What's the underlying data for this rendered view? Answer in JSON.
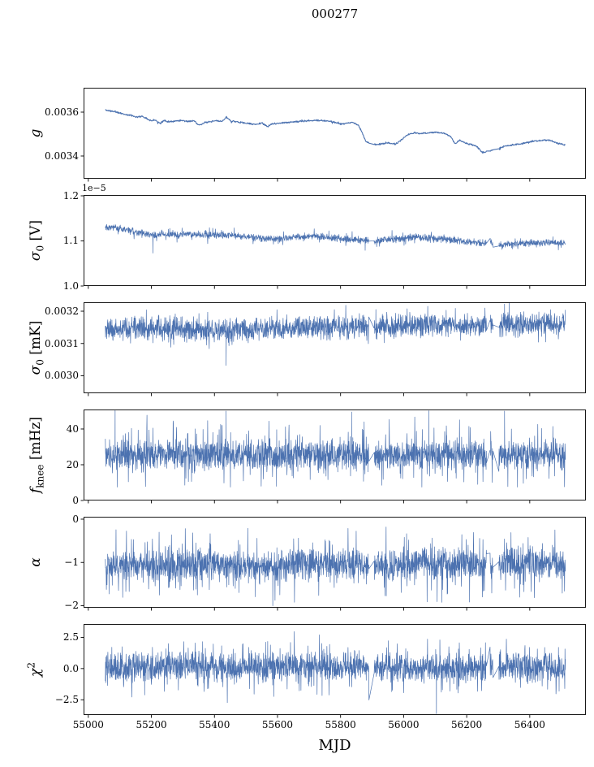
{
  "chart_data": {
    "type": "line",
    "title": "000277",
    "xlabel": "MJD",
    "line_color": "#4c72b0",
    "axis_color": "#000000",
    "background": "#ffffff",
    "grid": false,
    "legend": "none",
    "x": {
      "lim": [
        54985,
        56578
      ],
      "ticks": [
        55000,
        55200,
        55400,
        55600,
        55800,
        56000,
        56200,
        56400
      ],
      "tick_labels": [
        "55000",
        "55200",
        "55400",
        "55600",
        "55800",
        "56000",
        "56200",
        "56400"
      ],
      "data_range": [
        55054,
        56513
      ]
    },
    "gaps": [
      [
        55890,
        55906
      ],
      [
        56263,
        56274
      ],
      [
        56284,
        56302
      ]
    ],
    "panels": [
      {
        "id": "g",
        "ylabel_text": "g",
        "ylabel_parts": {
          "main": "g",
          "sub": "",
          "sup": "",
          "suffix": ""
        },
        "offset_text": "",
        "ylim": [
          0.0032963,
          0.0037111
        ],
        "yticks": [
          0.0034,
          0.0036
        ],
        "ytick_labels": [
          "0.0034",
          "0.0036"
        ],
        "series": {
          "kind": "trend_plus_noise",
          "seed": 11,
          "n_points": 1300,
          "noise_base": 4.2e-06,
          "spike_prob": 0.02,
          "spike_amp": 8e-06,
          "clip": null,
          "anomalies": [],
          "trend_points": [
            [
              55054,
              0.00361
            ],
            [
              55075,
              0.003604
            ],
            [
              55095,
              0.003598
            ],
            [
              55115,
              0.00359
            ],
            [
              55135,
              0.003585
            ],
            [
              55155,
              0.003578
            ],
            [
              55170,
              0.003581
            ],
            [
              55185,
              0.003572
            ],
            [
              55200,
              0.00356
            ],
            [
              55212,
              0.003565
            ],
            [
              55228,
              0.003548
            ],
            [
              55240,
              0.003562
            ],
            [
              55258,
              0.003556
            ],
            [
              55275,
              0.003559
            ],
            [
              55295,
              0.003563
            ],
            [
              55315,
              0.003557
            ],
            [
              55335,
              0.003561
            ],
            [
              55352,
              0.00354
            ],
            [
              55368,
              0.003552
            ],
            [
              55388,
              0.003556
            ],
            [
              55405,
              0.003561
            ],
            [
              55422,
              0.003557
            ],
            [
              55437,
              0.003576
            ],
            [
              55452,
              0.00356
            ],
            [
              55470,
              0.003556
            ],
            [
              55490,
              0.003552
            ],
            [
              55512,
              0.003547
            ],
            [
              55532,
              0.003544
            ],
            [
              55550,
              0.003551
            ],
            [
              55568,
              0.003534
            ],
            [
              55583,
              0.003546
            ],
            [
              55600,
              0.003549
            ],
            [
              55625,
              0.003552
            ],
            [
              55650,
              0.003556
            ],
            [
              55675,
              0.003558
            ],
            [
              55700,
              0.003561
            ],
            [
              55725,
              0.003563
            ],
            [
              55750,
              0.00356
            ],
            [
              55775,
              0.003557
            ],
            [
              55800,
              0.003545
            ],
            [
              55820,
              0.003549
            ],
            [
              55840,
              0.003553
            ],
            [
              55856,
              0.003541
            ],
            [
              55868,
              0.003508
            ],
            [
              55880,
              0.003468
            ],
            [
              55895,
              0.003455
            ],
            [
              55915,
              0.003452
            ],
            [
              55935,
              0.003456
            ],
            [
              55955,
              0.003459
            ],
            [
              55975,
              0.003455
            ],
            [
              55992,
              0.003472
            ],
            [
              56012,
              0.003496
            ],
            [
              56032,
              0.003506
            ],
            [
              56055,
              0.003502
            ],
            [
              56080,
              0.003506
            ],
            [
              56105,
              0.003509
            ],
            [
              56130,
              0.003503
            ],
            [
              56150,
              0.003488
            ],
            [
              56163,
              0.003455
            ],
            [
              56178,
              0.003472
            ],
            [
              56192,
              0.003461
            ],
            [
              56210,
              0.003453
            ],
            [
              56230,
              0.003446
            ],
            [
              56250,
              0.003416
            ],
            [
              56268,
              0.003421
            ],
            [
              56285,
              0.003427
            ],
            [
              56305,
              0.003436
            ],
            [
              56325,
              0.003446
            ],
            [
              56345,
              0.003451
            ],
            [
              56365,
              0.003453
            ],
            [
              56385,
              0.003459
            ],
            [
              56405,
              0.003466
            ],
            [
              56425,
              0.003469
            ],
            [
              56445,
              0.003473
            ],
            [
              56465,
              0.003471
            ],
            [
              56485,
              0.003459
            ],
            [
              56505,
              0.003452
            ],
            [
              56513,
              0.00345
            ]
          ]
        }
      },
      {
        "id": "sigma0_V",
        "ylabel_text": "sigma_0 [V]",
        "ylabel_parts": {
          "main": "σ",
          "sub": "0",
          "sup": "",
          "suffix": " [V]"
        },
        "offset_text": "1e−5",
        "units_multiplier": "1e-5",
        "ylim": [
          1.0,
          1.2018
        ],
        "yticks": [
          1.0,
          1.1,
          1.2
        ],
        "ytick_labels": [
          "1.0",
          "1.1",
          "1.2"
        ],
        "series": {
          "kind": "trend_plus_noise",
          "seed": 22,
          "n_points": 2100,
          "noise_base": 0.009,
          "spike_prob": 0.08,
          "spike_amp": 0.013,
          "clip": null,
          "anomalies": [
            [
              55205,
              1.073
            ],
            [
              55878,
              1.079
            ],
            [
              56312,
              1.081
            ]
          ],
          "trend_points": [
            [
              55054,
              1.133
            ],
            [
              55090,
              1.129
            ],
            [
              55130,
              1.123
            ],
            [
              55170,
              1.117
            ],
            [
              55205,
              1.112
            ],
            [
              55230,
              1.114
            ],
            [
              55270,
              1.113
            ],
            [
              55310,
              1.115
            ],
            [
              55350,
              1.114
            ],
            [
              55390,
              1.112
            ],
            [
              55430,
              1.113
            ],
            [
              55470,
              1.111
            ],
            [
              55510,
              1.109
            ],
            [
              55550,
              1.106
            ],
            [
              55590,
              1.104
            ],
            [
              55630,
              1.107
            ],
            [
              55670,
              1.109
            ],
            [
              55710,
              1.111
            ],
            [
              55750,
              1.109
            ],
            [
              55790,
              1.106
            ],
            [
              55830,
              1.104
            ],
            [
              55870,
              1.101
            ],
            [
              55910,
              1.1
            ],
            [
              55950,
              1.103
            ],
            [
              55990,
              1.106
            ],
            [
              56030,
              1.108
            ],
            [
              56070,
              1.107
            ],
            [
              56110,
              1.105
            ],
            [
              56150,
              1.102
            ],
            [
              56190,
              1.099
            ],
            [
              56230,
              1.097
            ],
            [
              56270,
              1.094
            ],
            [
              56310,
              1.091
            ],
            [
              56350,
              1.093
            ],
            [
              56390,
              1.095
            ],
            [
              56430,
              1.096
            ],
            [
              56470,
              1.097
            ],
            [
              56513,
              1.096
            ]
          ]
        }
      },
      {
        "id": "sigma0_mK",
        "ylabel_text": "sigma_0 [mK]",
        "ylabel_parts": {
          "main": "σ",
          "sub": "0",
          "sup": "",
          "suffix": " [mK]"
        },
        "offset_text": "",
        "ylim": [
          0.0029459,
          0.0032277
        ],
        "yticks": [
          0.003,
          0.0031,
          0.0032
        ],
        "ytick_labels": [
          "0.0030",
          "0.0031",
          "0.0032"
        ],
        "series": {
          "kind": "trend_plus_noise",
          "seed": 33,
          "n_points": 2100,
          "noise_base": 4.2e-05,
          "spike_prob": 0.1,
          "spike_amp": 3.6e-05,
          "clip": null,
          "anomalies": [
            [
              55437,
              0.003032
            ],
            [
              55912,
              0.003205
            ],
            [
              56320,
              0.003222
            ]
          ],
          "trend_points": [
            [
              55054,
              0.003142
            ],
            [
              55200,
              0.003146
            ],
            [
              55350,
              0.003143
            ],
            [
              55450,
              0.00314
            ],
            [
              55600,
              0.003148
            ],
            [
              55750,
              0.00315
            ],
            [
              55900,
              0.003152
            ],
            [
              56000,
              0.003155
            ],
            [
              56100,
              0.003157
            ],
            [
              56200,
              0.003155
            ],
            [
              56300,
              0.003158
            ],
            [
              56400,
              0.00316
            ],
            [
              56513,
              0.00316
            ]
          ]
        }
      },
      {
        "id": "fknee",
        "ylabel_text": "f_knee [mHz]",
        "ylabel_parts": {
          "main": "f",
          "sub": "knee",
          "sup": "",
          "suffix": " [mHz]"
        },
        "offset_text": "",
        "ylim": [
          0,
          50.9
        ],
        "yticks": [
          0,
          20,
          40
        ],
        "ytick_labels": [
          "0",
          "20",
          "40"
        ],
        "series": {
          "kind": "trend_plus_noise",
          "seed": 44,
          "n_points": 2200,
          "noise_base": 9,
          "spike_prob": 0.15,
          "spike_amp": 15,
          "clip": [
            7.5,
            50.6
          ],
          "anomalies": [
            [
              55085,
              50.3
            ],
            [
              55437,
              50.0
            ],
            [
              55835,
              49.5
            ],
            [
              56080,
              50.2
            ],
            [
              56320,
              50.0
            ]
          ],
          "trend_points": [
            [
              55054,
              25.5
            ],
            [
              55400,
              25.8
            ],
            [
              55800,
              25.2
            ],
            [
              56200,
              25.5
            ],
            [
              56513,
              25.8
            ]
          ]
        }
      },
      {
        "id": "alpha",
        "ylabel_text": "alpha",
        "ylabel_parts": {
          "main": "α",
          "sub": "",
          "sup": "",
          "suffix": ""
        },
        "offset_text": "",
        "ylim": [
          -2.047,
          0.056
        ],
        "yticks": [
          -2,
          -1,
          0
        ],
        "ytick_labels": [
          "−2",
          "−1",
          "0"
        ],
        "series": {
          "kind": "trend_plus_noise",
          "seed": 55,
          "n_points": 2200,
          "noise_base": 0.4,
          "spike_prob": 0.14,
          "spike_amp": 0.7,
          "clip": [
            -2.02,
            -0.18
          ],
          "anomalies": [
            [
              55585,
              -2.0
            ]
          ],
          "trend_points": [
            [
              55054,
              -1.05
            ],
            [
              55450,
              -1.07
            ],
            [
              55560,
              -1.12
            ],
            [
              55650,
              -1.04
            ],
            [
              56000,
              -1.05
            ],
            [
              56300,
              -1.02
            ],
            [
              56513,
              -1.03
            ]
          ]
        }
      },
      {
        "id": "chi2",
        "ylabel_text": "chi^2",
        "ylabel_parts": {
          "main": "χ",
          "sub": "",
          "sup": "2",
          "suffix": ""
        },
        "offset_text": "",
        "ylim": [
          -3.72,
          3.57
        ],
        "yticks": [
          -2.5,
          0.0,
          2.5
        ],
        "ytick_labels": [
          "−2.5",
          "0.0",
          "2.5"
        ],
        "series": {
          "kind": "trend_plus_noise",
          "seed": 66,
          "n_points": 2200,
          "noise_base": 1.3,
          "spike_prob": 0.16,
          "spike_amp": 1.9,
          "clip": [
            -3.65,
            3.3
          ],
          "anomalies": [
            [
              56104,
              -3.62
            ]
          ],
          "trend_points": [
            [
              55054,
              0.1
            ],
            [
              55600,
              0.15
            ],
            [
              56100,
              0.08
            ],
            [
              56513,
              0.12
            ]
          ]
        }
      }
    ]
  }
}
